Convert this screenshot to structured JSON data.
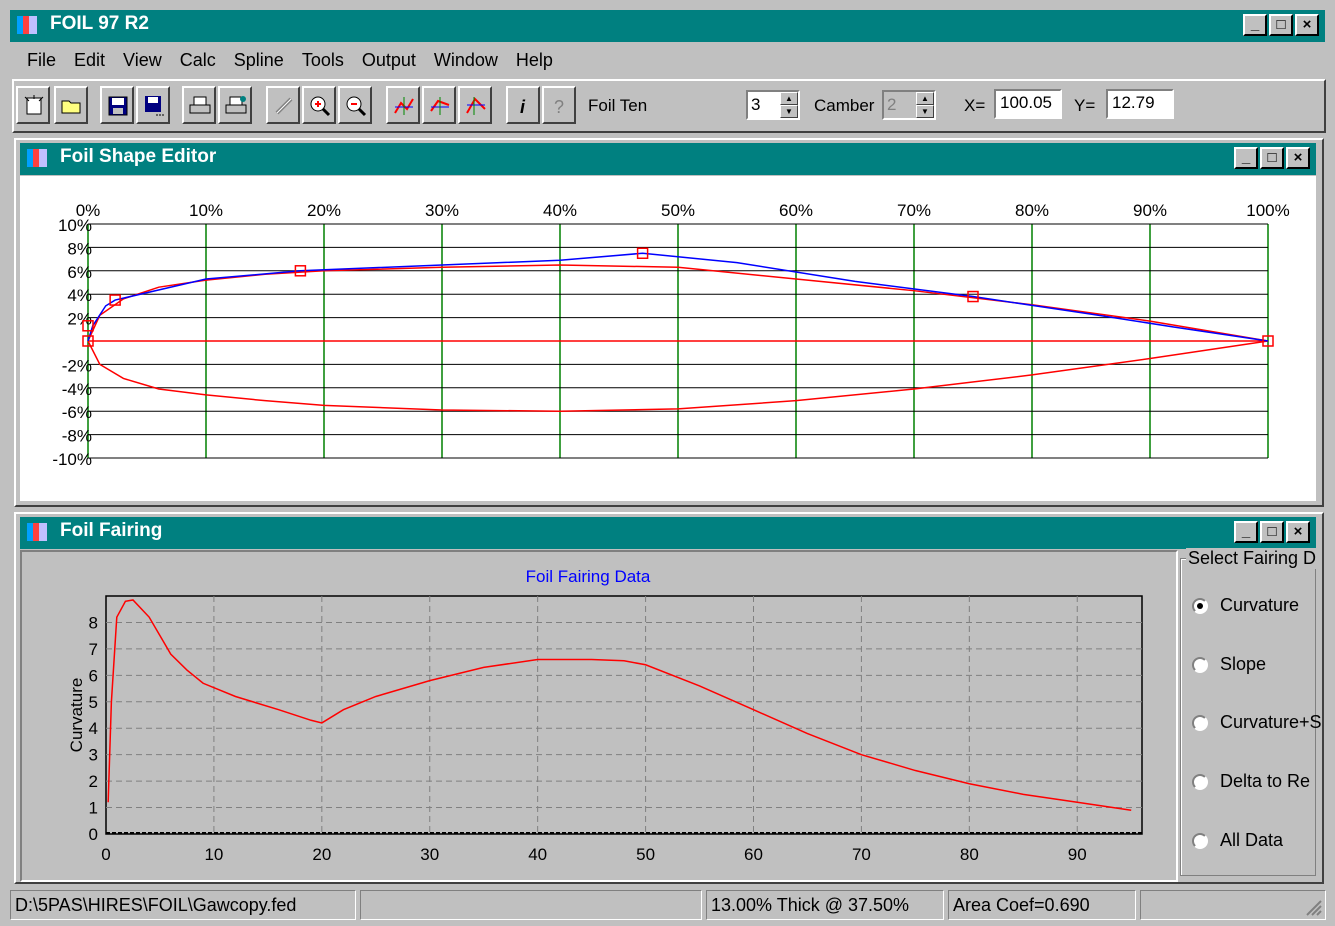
{
  "app": {
    "title": "FOIL 97 R2"
  },
  "window_buttons": {
    "minimize": "_",
    "maximize": "□",
    "close": "×"
  },
  "menu": [
    "File",
    "Edit",
    "View",
    "Calc",
    "Spline",
    "Tools",
    "Output",
    "Window",
    "Help"
  ],
  "toolbar": {
    "buttons": [
      {
        "name": "new-icon"
      },
      {
        "name": "open-folder-icon"
      },
      {
        "name": "save-icon"
      },
      {
        "name": "save-as-icon"
      },
      {
        "name": "print-icon"
      },
      {
        "name": "print-setup-icon"
      },
      {
        "name": "link-icon",
        "disabled": true
      },
      {
        "name": "zoom-in-icon"
      },
      {
        "name": "zoom-out-icon"
      },
      {
        "name": "graph-1-icon"
      },
      {
        "name": "graph-2-icon"
      },
      {
        "name": "graph-3-icon"
      },
      {
        "name": "info-icon"
      },
      {
        "name": "help-icon",
        "disabled": true
      }
    ],
    "foil_ten_label": "Foil Ten",
    "foil_ten_value": "3",
    "camber_label": "Camber",
    "camber_value": "2",
    "x_label": "X=",
    "x_value": "100.05",
    "y_label": "Y=",
    "y_value": "12.79"
  },
  "editor": {
    "title": "Foil Shape Editor",
    "x_ticks": [
      "0%",
      "10%",
      "20%",
      "30%",
      "40%",
      "50%",
      "60%",
      "70%",
      "80%",
      "90%",
      "100%"
    ],
    "y_ticks": [
      "10%",
      "8%",
      "6%",
      "4%",
      "2%",
      "-2%",
      "-4%",
      "-6%",
      "-8%",
      "-10%"
    ],
    "colors": {
      "grid_vertical": "#008000",
      "grid_horizontal": "#000000",
      "foil": "#ff0000",
      "spline": "#0000ff"
    },
    "control_points": [
      [
        0,
        0
      ],
      [
        0,
        1.3
      ],
      [
        2.3,
        3.5
      ],
      [
        18,
        6
      ],
      [
        47,
        7.5
      ],
      [
        75,
        3.8
      ],
      [
        100,
        0
      ]
    ],
    "upper_surface": [
      [
        0,
        0
      ],
      [
        1,
        2.2
      ],
      [
        3,
        3.6
      ],
      [
        6,
        4.6
      ],
      [
        10,
        5.2
      ],
      [
        15,
        5.7
      ],
      [
        20,
        6.0
      ],
      [
        30,
        6.3
      ],
      [
        40,
        6.5
      ],
      [
        50,
        6.3
      ],
      [
        60,
        5.3
      ],
      [
        70,
        4.3
      ],
      [
        80,
        3.1
      ],
      [
        90,
        1.7
      ],
      [
        100,
        0
      ]
    ],
    "lower_surface": [
      [
        0,
        0
      ],
      [
        1,
        -2
      ],
      [
        3,
        -3.2
      ],
      [
        6,
        -4.1
      ],
      [
        10,
        -4.6
      ],
      [
        15,
        -5.1
      ],
      [
        20,
        -5.5
      ],
      [
        30,
        -5.9
      ],
      [
        40,
        -6
      ],
      [
        50,
        -5.8
      ],
      [
        60,
        -5.1
      ],
      [
        70,
        -4.1
      ],
      [
        80,
        -2.9
      ],
      [
        90,
        -1.5
      ],
      [
        100,
        0
      ]
    ],
    "spline_curve": [
      [
        0,
        0
      ],
      [
        0.4,
        1.3
      ],
      [
        1.5,
        3.0
      ],
      [
        2.3,
        3.5
      ],
      [
        10,
        5.3
      ],
      [
        18,
        6.0
      ],
      [
        30,
        6.5
      ],
      [
        40,
        6.9
      ],
      [
        47,
        7.5
      ],
      [
        55,
        6.7
      ],
      [
        65,
        5.1
      ],
      [
        75,
        3.8
      ],
      [
        85,
        2.3
      ],
      [
        92,
        1.2
      ],
      [
        100,
        0
      ]
    ]
  },
  "fairing": {
    "title": "Foil Fairing",
    "group_title": "Select Fairing D",
    "options": [
      {
        "label": "Curvature",
        "checked": true
      },
      {
        "label": "Slope",
        "checked": false
      },
      {
        "label": "Curvature+S",
        "checked": false
      },
      {
        "label": "Delta to Re",
        "checked": false
      },
      {
        "label": "All Data",
        "checked": false
      }
    ]
  },
  "chart_data": {
    "type": "line",
    "title": "Foil Fairing Data",
    "xlabel": "",
    "ylabel": "Curvature",
    "xlim": [
      0,
      96
    ],
    "ylim": [
      0,
      9
    ],
    "x_ticks": [
      0,
      10,
      20,
      30,
      40,
      50,
      60,
      70,
      80,
      90
    ],
    "y_ticks": [
      0,
      1,
      2,
      3,
      4,
      5,
      6,
      7,
      8
    ],
    "grid": true,
    "colors": {
      "line": "#ff0000",
      "title": "#0000ff"
    },
    "series": [
      {
        "points": [
          [
            0.2,
            1.2
          ],
          [
            0.5,
            5
          ],
          [
            1,
            8.2
          ],
          [
            1.8,
            8.8
          ],
          [
            2.5,
            8.85
          ],
          [
            4,
            8.2
          ],
          [
            5,
            7.5
          ],
          [
            6,
            6.8
          ],
          [
            7.5,
            6.2
          ],
          [
            9,
            5.7
          ],
          [
            12,
            5.2
          ],
          [
            16,
            4.7
          ],
          [
            19,
            4.3
          ],
          [
            20,
            4.2
          ],
          [
            22,
            4.7
          ],
          [
            25,
            5.2
          ],
          [
            30,
            5.8
          ],
          [
            35,
            6.3
          ],
          [
            40,
            6.6
          ],
          [
            45,
            6.6
          ],
          [
            48,
            6.55
          ],
          [
            50,
            6.4
          ],
          [
            55,
            5.6
          ],
          [
            60,
            4.7
          ],
          [
            65,
            3.8
          ],
          [
            70,
            3.0
          ],
          [
            75,
            2.4
          ],
          [
            80,
            1.9
          ],
          [
            85,
            1.5
          ],
          [
            90,
            1.2
          ],
          [
            95,
            0.9
          ]
        ]
      }
    ]
  },
  "status": {
    "path": "D:\\5PAS\\HIRES\\FOIL\\Gawcopy.fed",
    "empty": "",
    "thickness": "13.00% Thick @ 37.50%",
    "area": "Area Coef=0.690"
  }
}
